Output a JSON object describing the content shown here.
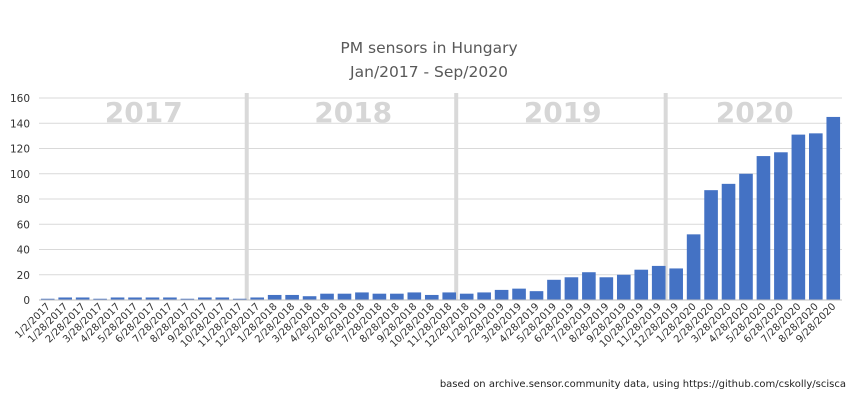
{
  "chart_data": {
    "type": "bar",
    "title": [
      "PM sensors in Hungary",
      "Jan/2017 - Sep/2020"
    ],
    "ylim": [
      0,
      160
    ],
    "yticks": [
      0,
      20,
      40,
      60,
      80,
      100,
      120,
      140,
      160
    ],
    "grid": true,
    "bar_color": "#4472c4",
    "year_labels": [
      {
        "label": "2017",
        "start_index": 0
      },
      {
        "label": "2018",
        "start_index": 12
      },
      {
        "label": "2019",
        "start_index": 24
      },
      {
        "label": "2020",
        "start_index": 36
      }
    ],
    "categories": [
      "1/2/2017",
      "1/28/2017",
      "2/28/2017",
      "3/28/2017",
      "4/28/2017",
      "5/28/2017",
      "6/28/2017",
      "7/28/2017",
      "8/28/2017",
      "9/28/2017",
      "10/28/2017",
      "11/28/2017",
      "12/28/2017",
      "1/28/2018",
      "2/28/2018",
      "3/28/2018",
      "4/28/2018",
      "5/28/2018",
      "6/28/2018",
      "7/28/2018",
      "8/28/2018",
      "9/28/2018",
      "10/28/2018",
      "11/28/2018",
      "12/28/2018",
      "1/28/2019",
      "2/28/2019",
      "3/28/2019",
      "4/28/2019",
      "5/28/2019",
      "6/28/2019",
      "7/28/2019",
      "8/28/2019",
      "9/28/2019",
      "10/28/2019",
      "11/28/2019",
      "12/28/2019",
      "1/28/2020",
      "2/28/2020",
      "3/28/2020",
      "4/28/2020",
      "5/28/2020",
      "6/28/2020",
      "7/28/2020",
      "8/28/2020",
      "9/28/2020"
    ],
    "values": [
      1,
      2,
      2,
      1,
      2,
      2,
      2,
      2,
      1,
      2,
      2,
      1,
      2,
      4,
      4,
      3,
      5,
      5,
      6,
      5,
      5,
      6,
      4,
      6,
      5,
      6,
      8,
      9,
      7,
      16,
      18,
      22,
      18,
      20,
      24,
      27,
      25,
      52,
      87,
      92,
      100,
      114,
      117,
      131,
      132,
      145
    ]
  },
  "source_note": "based on archive.sensor.community data, using https://github.com/cskolly/scisca"
}
